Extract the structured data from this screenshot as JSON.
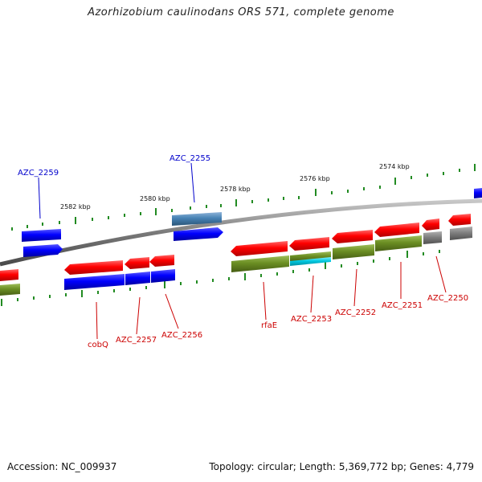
{
  "header": {
    "title": "Azorhizobium caulinodans ORS 571, complete genome"
  },
  "footer": {
    "accession": "Accession: NC_009937",
    "summary": "Topology: circular; Length: 5,369,772 bp; Genes: 4,779"
  },
  "scale_labels": [
    "2582 kbp",
    "2580 kbp",
    "2578 kbp",
    "2576 kbp",
    "2574 kbp"
  ],
  "gene_labels": {
    "top": [
      "AZC_2259",
      "AZC_2255"
    ],
    "bottom": [
      "cobQ",
      "AZC_2257",
      "AZC_2256",
      "rfaE",
      "AZC_2253",
      "AZC_2252",
      "AZC_2251",
      "AZC_2250"
    ]
  },
  "colors": {
    "forward_gene": "#ff0000",
    "reverse_gene": "#0000ff",
    "steel_gene": "#4682b4",
    "olive_cog": "#6b8e23",
    "cyan_cog": "#00bcd4",
    "gray_cog": "#808080",
    "backbone": "#808080",
    "scale_ticks": "#228b22",
    "top_label": "#0000cc",
    "bottom_label": "#cc0000"
  }
}
